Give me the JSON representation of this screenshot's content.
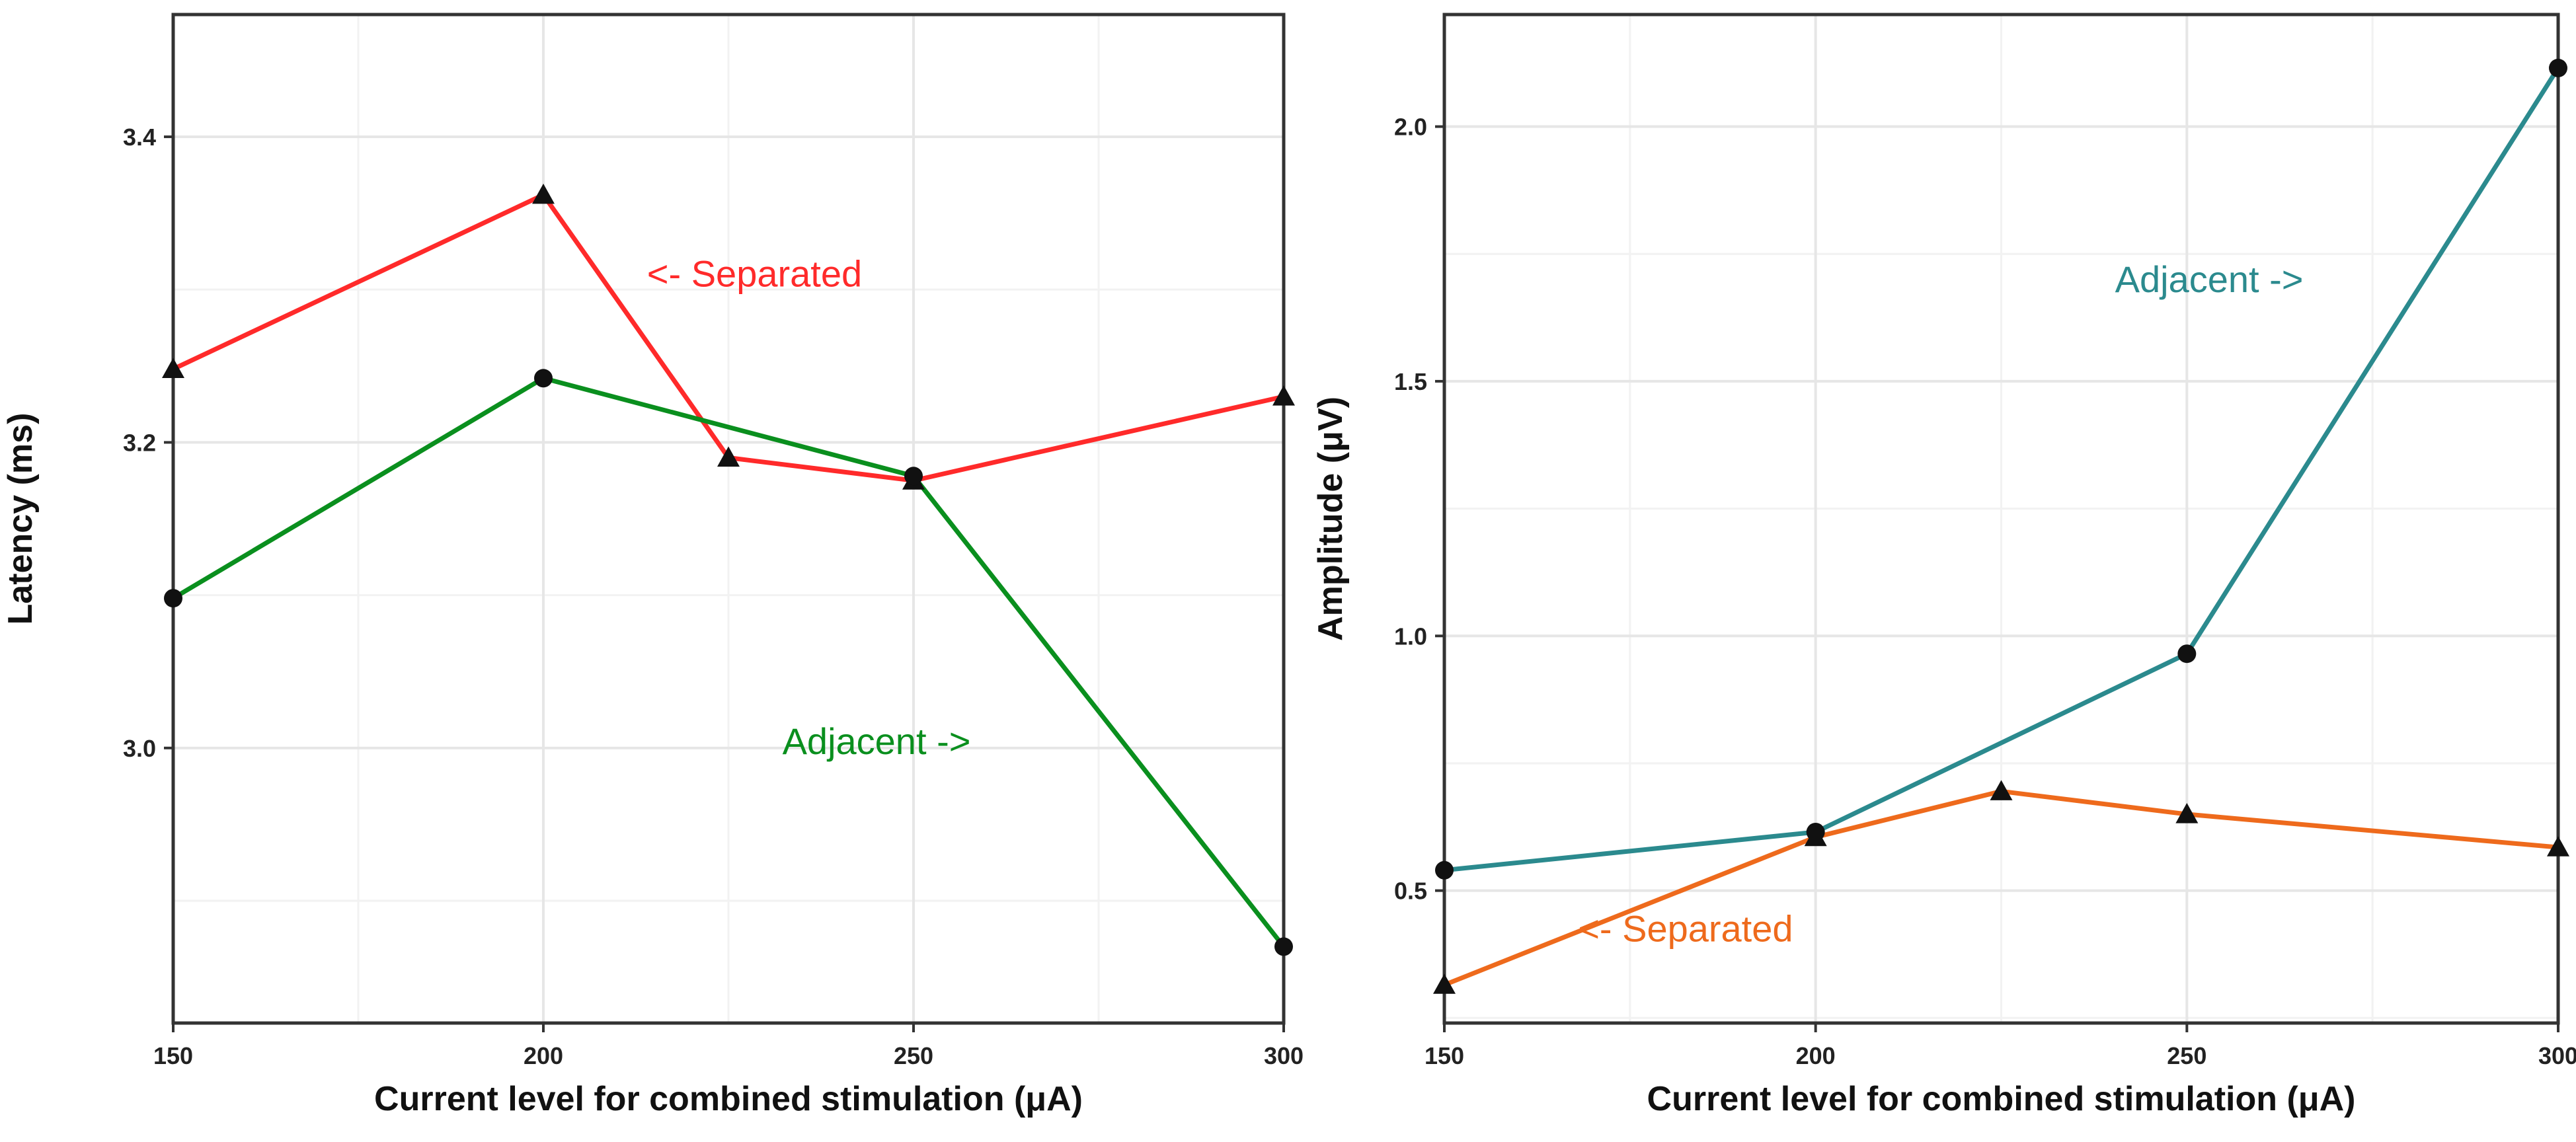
{
  "chart_data": [
    {
      "type": "line",
      "xlabel": "Current level for combined stimulation (μA)",
      "ylabel": "Latency (ms)",
      "xlim": [
        150,
        300
      ],
      "ylim": [
        2.82,
        3.48
      ],
      "x_ticks": [
        150,
        200,
        250,
        300
      ],
      "y_ticks": [
        3.0,
        3.2,
        3.4
      ],
      "x_tick_labels": [
        "150",
        "200",
        "250",
        "300"
      ],
      "y_tick_labels": [
        "3.0",
        "3.2",
        "3.4"
      ],
      "grid": true,
      "series": [
        {
          "name": "Separated",
          "color": "#ff2a2a",
          "marker": "triangle",
          "x": [
            150,
            200,
            225,
            250,
            300
          ],
          "values": [
            3.248,
            3.362,
            3.19,
            3.175,
            3.23
          ]
        },
        {
          "name": "Adjacent",
          "color": "#0a8f1e",
          "marker": "circle",
          "x": [
            150,
            200,
            250,
            300
          ],
          "values": [
            3.098,
            3.242,
            3.178,
            2.87
          ]
        }
      ],
      "annotations": [
        {
          "text": "<- Separated",
          "color": "#ff2a2a",
          "x": 214,
          "y": 3.302,
          "anchor": "start"
        },
        {
          "text": "Adjacent ->",
          "color": "#0a8f1e",
          "x": 245,
          "y": 2.996,
          "anchor": "middle"
        }
      ]
    },
    {
      "type": "line",
      "xlabel": "Current level for combined stimulation (μA)",
      "ylabel": "Amplitude  (μV)",
      "xlim": [
        150,
        300
      ],
      "ylim": [
        0.24,
        2.22
      ],
      "x_ticks": [
        150,
        200,
        250,
        300
      ],
      "y_ticks": [
        0.5,
        1.0,
        1.5,
        2.0
      ],
      "x_tick_labels": [
        "150",
        "200",
        "250",
        "300"
      ],
      "y_tick_labels": [
        "0.5",
        "1.0",
        "1.5",
        "2.0"
      ],
      "grid": true,
      "series": [
        {
          "name": "Adjacent",
          "color": "#2b8a8e",
          "marker": "circle",
          "x": [
            150,
            200,
            250,
            300
          ],
          "values": [
            0.54,
            0.615,
            0.965,
            2.115
          ]
        },
        {
          "name": "Separated",
          "color": "#ee6a1c",
          "marker": "triangle",
          "x": [
            150,
            200,
            225,
            250,
            300
          ],
          "values": [
            0.315,
            0.605,
            0.695,
            0.65,
            0.585
          ]
        }
      ],
      "annotations": [
        {
          "text": "Adjacent ->",
          "color": "#2b8a8e",
          "x": 253,
          "y": 1.675,
          "anchor": "middle"
        },
        {
          "text": "<- Separated",
          "color": "#ee6a1c",
          "x": 168,
          "y": 0.4,
          "anchor": "start"
        }
      ]
    }
  ]
}
